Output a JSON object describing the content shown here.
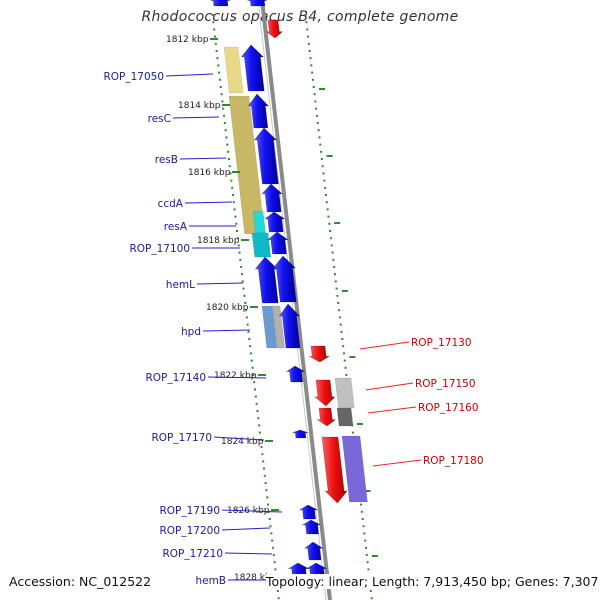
{
  "title": "Rhodococcus opacus B4, complete genome",
  "footer": {
    "accession": "Accession: NC_012522",
    "summary": "Topology: linear; Length: 7,913,450 bp; Genes: 7,307"
  },
  "colors": {
    "forward_gene": "#1010ee",
    "reverse_gene": "#ee1111",
    "forward_label": "#1a1aa0",
    "reverse_label": "#cc0000",
    "tick": "#2e8b2e",
    "axis": "#888888"
  },
  "scale_ticks": [
    {
      "label": "1812 kbp"
    },
    {
      "label": "1814 kbp"
    },
    {
      "label": "1816 kbp"
    },
    {
      "label": "1818 kbp"
    },
    {
      "label": "1820 kbp"
    },
    {
      "label": "1822 kbp"
    },
    {
      "label": "1824 kbp"
    },
    {
      "label": "1826 kbp"
    },
    {
      "label": "1828 kbp"
    }
  ],
  "genes_forward": [
    "ROP_17050",
    "resC",
    "resB",
    "ccdA",
    "resA",
    "ROP_17100",
    "hemL",
    "hpd",
    "ROP_17140",
    "ROP_17170",
    "ROP_17190",
    "ROP_17200",
    "ROP_17210",
    "hemB"
  ],
  "genes_reverse": [
    "ROP_17130",
    "ROP_17150",
    "ROP_17160",
    "ROP_17180"
  ]
}
